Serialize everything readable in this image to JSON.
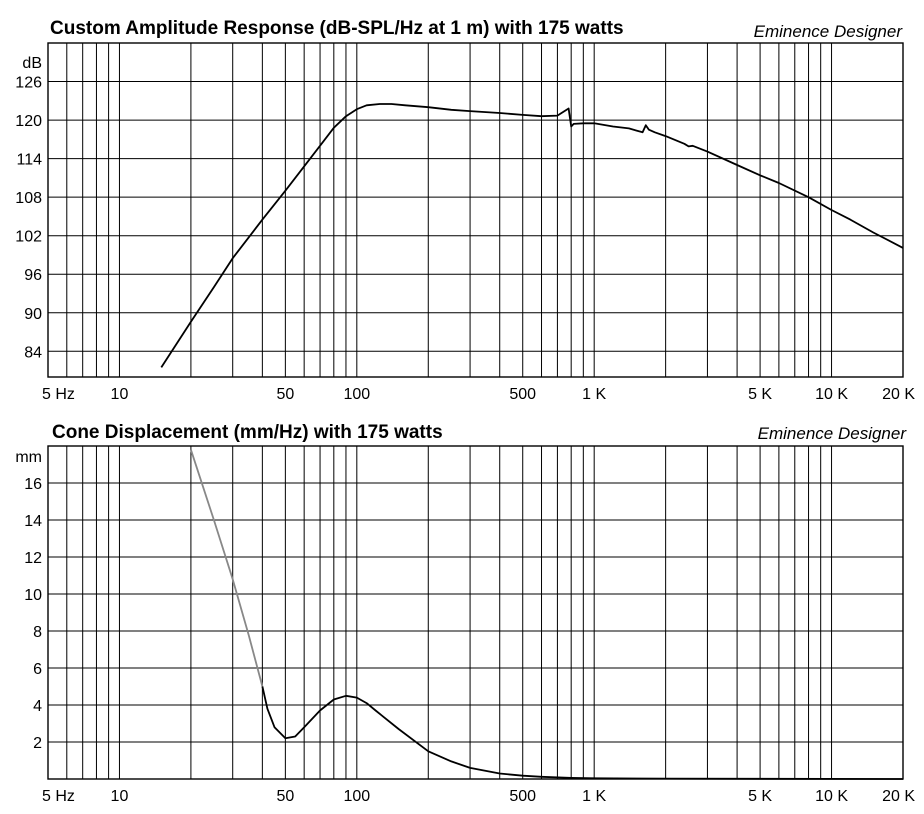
{
  "chart_data": [
    {
      "type": "line",
      "title": "Custom Amplitude Response (dB-SPL/Hz at 1 m) with 175 watts",
      "brand": "Eminence Designer",
      "ylabel": "dB",
      "xscale": "log",
      "xlim": [
        5,
        20000
      ],
      "ylim": [
        80,
        132
      ],
      "yticks": [
        84,
        90,
        96,
        102,
        108,
        114,
        120,
        126
      ],
      "xticks": [
        {
          "v": 5,
          "label": "5 Hz"
        },
        {
          "v": 10,
          "label": "10"
        },
        {
          "v": 50,
          "label": "50"
        },
        {
          "v": 100,
          "label": "100"
        },
        {
          "v": 500,
          "label": "500"
        },
        {
          "v": 1000,
          "label": "1 K"
        },
        {
          "v": 5000,
          "label": "5 K"
        },
        {
          "v": 10000,
          "label": "10 K"
        },
        {
          "v": 20000,
          "label": "20 K"
        }
      ],
      "grid": true,
      "series": [
        {
          "color": "#000000",
          "x": [
            15,
            20,
            25,
            30,
            40,
            50,
            60,
            70,
            80,
            90,
            100,
            110,
            125,
            140,
            160,
            200,
            250,
            300,
            400,
            500,
            600,
            700,
            780,
            800,
            820,
            900,
            1000,
            1200,
            1400,
            1600,
            1650,
            1700,
            1800,
            2000,
            2400,
            2500,
            2600,
            3000,
            4000,
            5000,
            6000,
            8000,
            10000,
            12000,
            15000,
            20000
          ],
          "y": [
            81.5,
            88.6,
            94.0,
            98.5,
            104.5,
            109.0,
            112.8,
            116.0,
            118.8,
            120.6,
            121.7,
            122.3,
            122.5,
            122.5,
            122.3,
            122.0,
            121.6,
            121.4,
            121.1,
            120.8,
            120.6,
            120.7,
            121.8,
            119.0,
            119.4,
            119.5,
            119.5,
            119.0,
            118.7,
            118.1,
            119.2,
            118.5,
            118.1,
            117.5,
            116.3,
            115.9,
            116.0,
            115.1,
            113.0,
            111.4,
            110.2,
            108.0,
            106.0,
            104.5,
            102.5,
            100.1
          ]
        }
      ]
    },
    {
      "type": "line",
      "title": "Cone Displacement (mm/Hz) with 175 watts",
      "brand": "Eminence Designer",
      "ylabel": "mm",
      "xscale": "log",
      "xlim": [
        5,
        20000
      ],
      "ylim": [
        0,
        18
      ],
      "yticks": [
        2,
        4,
        6,
        8,
        10,
        12,
        14,
        16
      ],
      "xticks": [
        {
          "v": 5,
          "label": "5 Hz"
        },
        {
          "v": 10,
          "label": "10"
        },
        {
          "v": 50,
          "label": "50"
        },
        {
          "v": 100,
          "label": "100"
        },
        {
          "v": 500,
          "label": "500"
        },
        {
          "v": 1000,
          "label": "1 K"
        },
        {
          "v": 5000,
          "label": "5 K"
        },
        {
          "v": 10000,
          "label": "10 K"
        },
        {
          "v": 20000,
          "label": "20 K"
        }
      ],
      "grid": true,
      "series": [
        {
          "color": "#888888",
          "x": [
            20,
            25,
            30,
            35,
            40
          ],
          "y": [
            17.8,
            14.0,
            10.8,
            7.8,
            5.0
          ]
        },
        {
          "color": "#000000",
          "x": [
            40,
            42,
            45,
            50,
            55,
            60,
            70,
            80,
            90,
            100,
            110,
            120,
            150,
            200,
            250,
            300,
            400,
            500,
            600,
            800,
            1000,
            2000,
            5000,
            20000
          ],
          "y": [
            5.0,
            3.8,
            2.8,
            2.2,
            2.3,
            2.8,
            3.7,
            4.3,
            4.5,
            4.4,
            4.1,
            3.7,
            2.7,
            1.5,
            0.95,
            0.6,
            0.3,
            0.18,
            0.12,
            0.06,
            0.04,
            0.02,
            0.01,
            0.0
          ]
        }
      ]
    }
  ]
}
